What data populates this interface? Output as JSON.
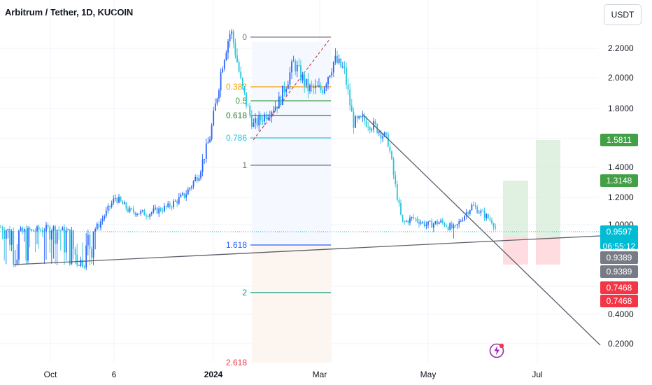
{
  "header": {
    "symbol_title": "Arbitrum / Tether, 1D, KUCOIN",
    "currency_button": "USDT"
  },
  "chart_data": {
    "type": "candlestick",
    "title": "Arbitrum / Tether, 1D, KUCOIN",
    "x_ticks": [
      "Oct",
      "6",
      "2024",
      "Mar",
      "May",
      "Jul"
    ],
    "y_ticks": [
      "2.2000",
      "2.0000",
      "1.8000",
      "1.4000",
      "1.2000",
      "1.0000",
      "0.4000",
      "0.2000"
    ],
    "y_scale": "log",
    "ylim": [
      0.18,
      2.45
    ],
    "grid": true,
    "current_price": "0.9597",
    "countdown": "06:55:12",
    "price_tags": [
      {
        "value": "1.5811",
        "color": "#43a047"
      },
      {
        "value": "1.3148",
        "color": "#43a047"
      },
      {
        "value": "0.9597",
        "color": "#00bcd4"
      },
      {
        "value": "0.9389",
        "color": "#787b86"
      },
      {
        "value": "0.9389",
        "color": "#787b86"
      },
      {
        "value": "0.7468",
        "color": "#f23645"
      },
      {
        "value": "0.7468",
        "color": "#f23645"
      }
    ],
    "fib_levels": [
      {
        "label": "0",
        "value": 2.28,
        "color": "#787b86"
      },
      {
        "label": "0.382",
        "value": 1.93,
        "color": "#f59f00"
      },
      {
        "label": "0.5",
        "value": 1.84,
        "color": "#43a047"
      },
      {
        "label": "0.618",
        "value": 1.74,
        "color": "#2e7d32"
      },
      {
        "label": "0.786",
        "value": 1.6,
        "color": "#26c6da"
      },
      {
        "label": "1",
        "value": 1.41,
        "color": "#787b86"
      },
      {
        "label": "1.618",
        "value": 0.9,
        "color": "#2962ff"
      },
      {
        "label": "2",
        "value": 0.55,
        "color": "#089981"
      },
      {
        "label": "2.618",
        "value": 0.18,
        "color": "#f23645"
      }
    ],
    "trade_boxes": [
      {
        "entry": 0.9389,
        "target": 1.3148,
        "stop": 0.7468
      },
      {
        "entry": 0.9389,
        "target": 1.5811,
        "stop": 0.7468
      }
    ],
    "colors": {
      "up": "#2962ff",
      "down": "#26c6da",
      "grid": "#f0f3fa"
    }
  }
}
